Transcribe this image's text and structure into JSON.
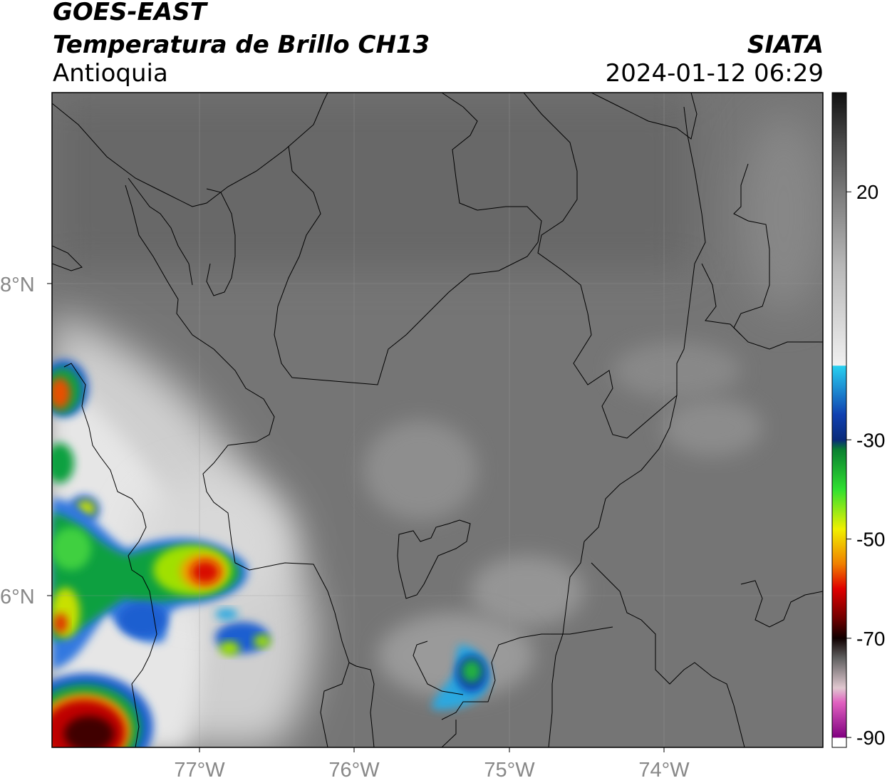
{
  "header": {
    "satellite": "GOES-EAST",
    "product": "Temperatura de Brillo CH13",
    "region": "Antioquia",
    "agency": "SIATA",
    "datetime": "2024-01-12 06:29"
  },
  "map": {
    "lat_labels": [
      "8°N",
      "6°N"
    ],
    "lon_labels": [
      "77°W",
      "76°W",
      "75°W",
      "74°W"
    ],
    "extent": {
      "lon_min": -77.95,
      "lon_max": -73.0,
      "lat_min": 4.95,
      "lat_max": 9.15
    }
  },
  "colorbar": {
    "ticks": [
      "20",
      "-30",
      "-50",
      "-70",
      "-90"
    ],
    "tick_values": [
      20,
      -30,
      -50,
      -70,
      -90
    ],
    "range": [
      -92,
      40
    ],
    "scale": [
      {
        "v": 40,
        "c": "#101010"
      },
      {
        "v": 30,
        "c": "#4a4a4a"
      },
      {
        "v": 20,
        "c": "#7a7a7a"
      },
      {
        "v": 5,
        "c": "#b8b8b8"
      },
      {
        "v": -15,
        "c": "#f0f0f0"
      },
      {
        "v": -15.1,
        "c": "#28d0f0"
      },
      {
        "v": -25,
        "c": "#1040b0"
      },
      {
        "v": -30,
        "c": "#0a2a7a"
      },
      {
        "v": -32,
        "c": "#0a8030"
      },
      {
        "v": -40,
        "c": "#30e030"
      },
      {
        "v": -48,
        "c": "#f0f000"
      },
      {
        "v": -55,
        "c": "#f08000"
      },
      {
        "v": -60,
        "c": "#e00000"
      },
      {
        "v": -66,
        "c": "#700000"
      },
      {
        "v": -70,
        "c": "#100000"
      },
      {
        "v": -74,
        "c": "#606060"
      },
      {
        "v": -80,
        "c": "#e0c8d0"
      },
      {
        "v": -83,
        "c": "#e060c0"
      },
      {
        "v": -90,
        "c": "#800080"
      },
      {
        "v": -90.1,
        "c": "#ffffff"
      }
    ]
  }
}
